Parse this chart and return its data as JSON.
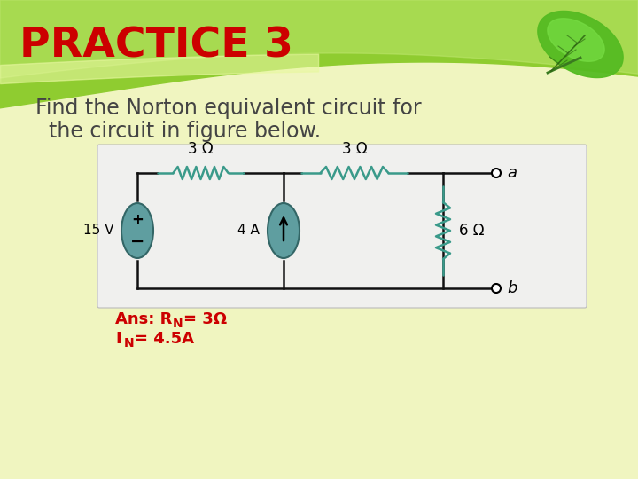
{
  "title": "PRACTICE 3",
  "title_color": "#CC0000",
  "title_fontsize": 34,
  "subtitle_line1": "Find the Norton equivalent circuit for",
  "subtitle_line2": "the circuit in figure below.",
  "subtitle_fontsize": 17,
  "subtitle_color": "#444444",
  "ans_color": "#CC0000",
  "ans_fontsize": 13,
  "bg_color": "#f0f5c0",
  "circuit_bg": "#f7f7f7",
  "circuit_line_color": "#111111",
  "resistor_color": "#3a9a8a",
  "source_color": "#5f9ea0",
  "wire_lw": 1.8,
  "wave_color1": "#8fcc30",
  "wave_color2": "#b8e060",
  "leaf_color1": "#55bb22",
  "leaf_color2": "#77dd44"
}
